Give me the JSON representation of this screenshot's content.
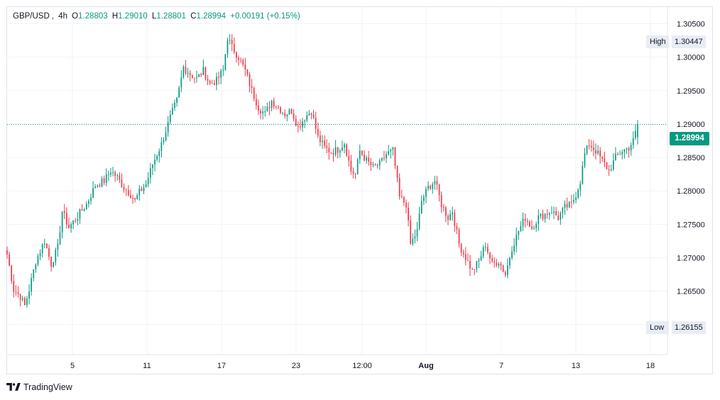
{
  "header": {
    "symbol": "GBP/USD",
    "sep": ",",
    "interval": "4h",
    "open_key": "O",
    "open": "1.28803",
    "high_key": "H",
    "high": "1.29010",
    "low_key": "L",
    "low": "1.28801",
    "close_key": "C",
    "close": "1.28994",
    "change": "+0.00191 (+0.15%)"
  },
  "markers": {
    "high_label": "High",
    "high_value": "1.30447",
    "low_label": "Low",
    "low_value": "1.26155",
    "last_price": "1.28994"
  },
  "brand": {
    "name": "TradingView"
  },
  "colors": {
    "up": "#089981",
    "down": "#f23645",
    "last_price": "#089981",
    "grid": "#f0f3fa"
  },
  "chart_data": {
    "type": "candlestick",
    "ylim": [
      1.2555,
      1.3075
    ],
    "ytick_values": [
      1.26,
      1.265,
      1.27,
      1.275,
      1.28,
      1.285,
      1.29,
      1.295,
      1.3,
      1.305
    ],
    "ytick_labels": [
      "1.26000",
      "1.26500",
      "1.27000",
      "1.27500",
      "1.28000",
      "1.28500",
      "1.29000",
      "1.29500",
      "1.30000",
      "1.30500"
    ],
    "xtick_labels": [
      "5",
      "11",
      "17",
      "23",
      "12:00",
      "Aug",
      "7",
      "13",
      "18"
    ],
    "xtick_bold": [
      false,
      false,
      false,
      false,
      false,
      true,
      false,
      false,
      false
    ],
    "grid": true,
    "close_path": [
      [
        0,
        1.2705
      ],
      [
        3,
        1.2652
      ],
      [
        6,
        1.2642
      ],
      [
        8,
        1.2628
      ],
      [
        10,
        1.2652
      ],
      [
        13,
        1.2695
      ],
      [
        17,
        1.2725
      ],
      [
        20,
        1.269
      ],
      [
        23,
        1.2715
      ],
      [
        25,
        1.277
      ],
      [
        28,
        1.2745
      ],
      [
        32,
        1.2762
      ],
      [
        36,
        1.278
      ],
      [
        40,
        1.2808
      ],
      [
        44,
        1.2815
      ],
      [
        47,
        1.283
      ],
      [
        50,
        1.282
      ],
      [
        53,
        1.2805
      ],
      [
        56,
        1.2795
      ],
      [
        58,
        1.2785
      ],
      [
        60,
        1.2798
      ],
      [
        63,
        1.281
      ],
      [
        66,
        1.284
      ],
      [
        70,
        1.287
      ],
      [
        74,
        1.291
      ],
      [
        77,
        1.2935
      ],
      [
        80,
        1.2985
      ],
      [
        83,
        1.2975
      ],
      [
        86,
        1.2968
      ],
      [
        89,
        1.298
      ],
      [
        92,
        1.296
      ],
      [
        95,
        1.2965
      ],
      [
        98,
        1.298
      ],
      [
        100,
        1.303
      ],
      [
        102,
        1.3015
      ],
      [
        105,
        1.3
      ],
      [
        108,
        1.298
      ],
      [
        111,
        1.295
      ],
      [
        114,
        1.2925
      ],
      [
        117,
        1.2915
      ],
      [
        120,
        1.2935
      ],
      [
        123,
        1.2925
      ],
      [
        126,
        1.2915
      ],
      [
        129,
        1.292
      ],
      [
        132,
        1.2895
      ],
      [
        135,
        1.291
      ],
      [
        138,
        1.292
      ],
      [
        141,
        1.288
      ],
      [
        144,
        1.2865
      ],
      [
        147,
        1.2858
      ],
      [
        150,
        1.2862
      ],
      [
        153,
        1.2872
      ],
      [
        156,
        1.283
      ],
      [
        158,
        1.2825
      ],
      [
        160,
        1.286
      ],
      [
        163,
        1.2845
      ],
      [
        166,
        1.2835
      ],
      [
        169,
        1.284
      ],
      [
        172,
        1.2855
      ],
      [
        175,
        1.286
      ],
      [
        178,
        1.279
      ],
      [
        181,
        1.278
      ],
      [
        183,
        1.272
      ],
      [
        186,
        1.274
      ],
      [
        188,
        1.2785
      ],
      [
        191,
        1.2805
      ],
      [
        194,
        1.2815
      ],
      [
        197,
        1.278
      ],
      [
        200,
        1.276
      ],
      [
        202,
        1.277
      ],
      [
        205,
        1.272
      ],
      [
        208,
        1.27
      ],
      [
        211,
        1.268
      ],
      [
        214,
        1.2695
      ],
      [
        217,
        1.272
      ],
      [
        220,
        1.269
      ],
      [
        223,
        1.2695
      ],
      [
        226,
        1.2675
      ],
      [
        229,
        1.2715
      ],
      [
        232,
        1.274
      ],
      [
        235,
        1.276
      ],
      [
        238,
        1.2745
      ],
      [
        241,
        1.276
      ],
      [
        244,
        1.2765
      ],
      [
        247,
        1.277
      ],
      [
        250,
        1.276
      ],
      [
        253,
        1.2775
      ],
      [
        256,
        1.278
      ],
      [
        258,
        1.2795
      ],
      [
        260,
        1.2815
      ],
      [
        262,
        1.2855
      ],
      [
        264,
        1.287
      ],
      [
        267,
        1.286
      ],
      [
        270,
        1.2845
      ],
      [
        273,
        1.283
      ],
      [
        276,
        1.285
      ],
      [
        279,
        1.286
      ],
      [
        282,
        1.2865
      ],
      [
        284,
        1.2875
      ],
      [
        286,
        1.2899
      ]
    ]
  }
}
